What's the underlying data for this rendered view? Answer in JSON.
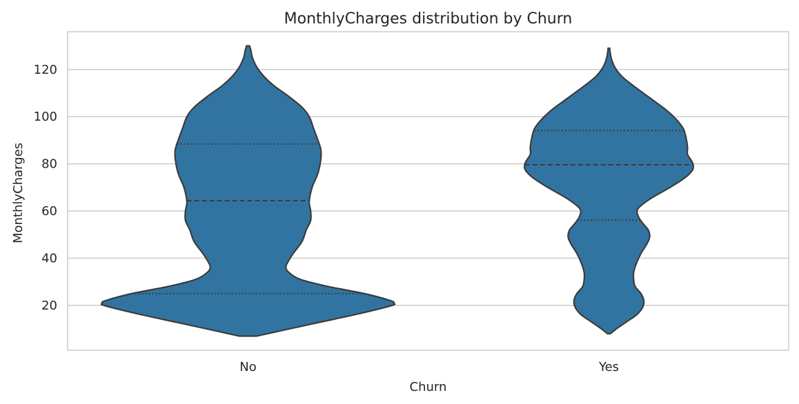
{
  "chart_data": {
    "type": "violin",
    "title": "MonthlyCharges distribution by Churn",
    "xlabel": "Churn",
    "ylabel": "MonthlyCharges",
    "categories": [
      "No",
      "Yes"
    ],
    "ylim": [
      1,
      136
    ],
    "yticks": [
      20,
      40,
      60,
      80,
      100,
      120
    ],
    "grid": true,
    "legend": "none",
    "color": "#3274a1",
    "edge_color": "#3b3b3b",
    "violins": [
      {
        "category": "No",
        "min": 7,
        "max": 130,
        "q1": 25,
        "median": 64.4,
        "q3": 88.4,
        "density": [
          [
            7,
            0.06
          ],
          [
            10,
            0.28
          ],
          [
            14,
            0.58
          ],
          [
            17,
            0.8
          ],
          [
            20,
            0.99
          ],
          [
            21,
            1.0
          ],
          [
            22,
            0.98
          ],
          [
            25,
            0.8
          ],
          [
            28,
            0.55
          ],
          [
            31,
            0.36
          ],
          [
            34,
            0.28
          ],
          [
            36,
            0.26
          ],
          [
            38,
            0.27
          ],
          [
            42,
            0.31
          ],
          [
            47,
            0.37
          ],
          [
            52,
            0.4
          ],
          [
            56,
            0.43
          ],
          [
            60,
            0.43
          ],
          [
            64,
            0.42
          ],
          [
            70,
            0.44
          ],
          [
            76,
            0.48
          ],
          [
            82,
            0.5
          ],
          [
            86,
            0.5
          ],
          [
            90,
            0.48
          ],
          [
            95,
            0.45
          ],
          [
            100,
            0.42
          ],
          [
            104,
            0.37
          ],
          [
            109,
            0.27
          ],
          [
            113,
            0.18
          ],
          [
            117,
            0.11
          ],
          [
            121,
            0.06
          ],
          [
            125,
            0.03
          ],
          [
            128,
            0.02
          ],
          [
            130,
            0.01
          ]
        ]
      },
      {
        "category": "Yes",
        "min": 8,
        "max": 129,
        "q1": 56.1,
        "median": 79.6,
        "q3": 94.1,
        "density": [
          [
            8,
            0.01
          ],
          [
            10,
            0.05
          ],
          [
            13,
            0.12
          ],
          [
            16,
            0.19
          ],
          [
            19,
            0.23
          ],
          [
            22,
            0.24
          ],
          [
            25,
            0.22
          ],
          [
            28,
            0.18
          ],
          [
            31,
            0.17
          ],
          [
            34,
            0.17
          ],
          [
            38,
            0.19
          ],
          [
            42,
            0.22
          ],
          [
            46,
            0.26
          ],
          [
            49,
            0.28
          ],
          [
            52,
            0.27
          ],
          [
            55,
            0.23
          ],
          [
            58,
            0.2
          ],
          [
            61,
            0.2
          ],
          [
            65,
            0.28
          ],
          [
            70,
            0.42
          ],
          [
            74,
            0.52
          ],
          [
            77,
            0.57
          ],
          [
            79,
            0.58
          ],
          [
            81,
            0.57
          ],
          [
            84,
            0.54
          ],
          [
            87,
            0.54
          ],
          [
            91,
            0.53
          ],
          [
            95,
            0.51
          ],
          [
            99,
            0.46
          ],
          [
            103,
            0.39
          ],
          [
            108,
            0.28
          ],
          [
            113,
            0.17
          ],
          [
            117,
            0.09
          ],
          [
            121,
            0.04
          ],
          [
            125,
            0.015
          ],
          [
            129,
            0.005
          ]
        ]
      }
    ]
  }
}
